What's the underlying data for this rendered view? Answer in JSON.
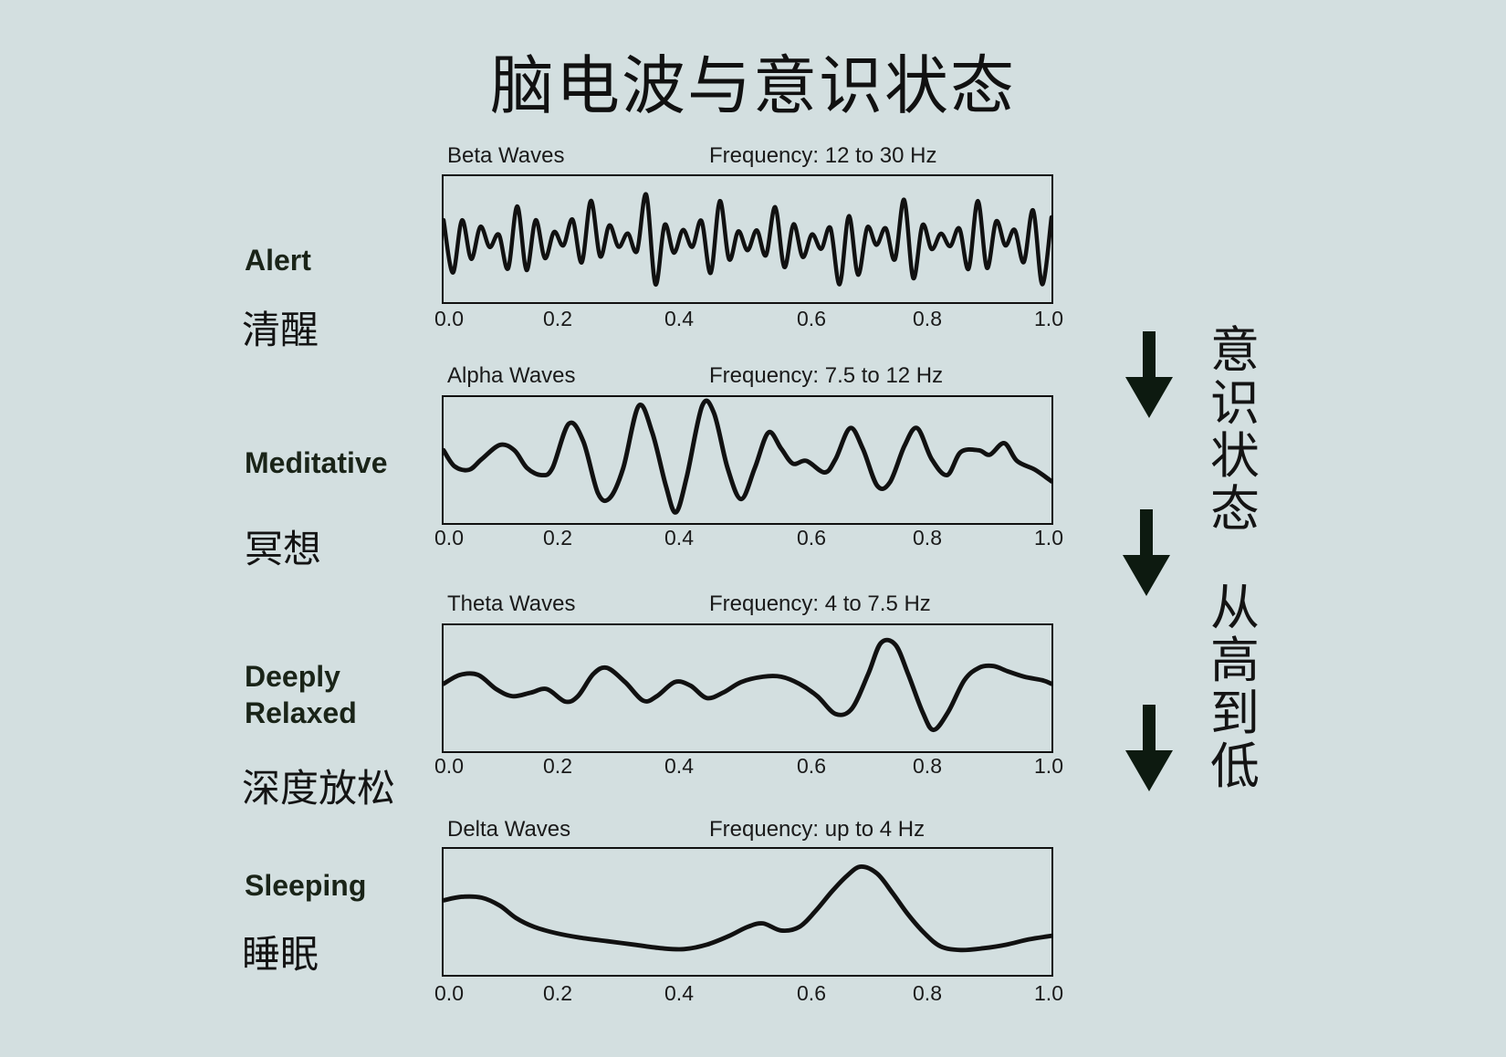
{
  "title": "脑电波与意识状态",
  "panels": [
    {
      "state_en": "Alert",
      "state_zh": "清醒",
      "wave_name": "Beta Waves",
      "frequency": "Frequency: 12 to 30 Hz",
      "ticks": [
        "0.0",
        "0.2",
        "0.4",
        "0.6",
        "0.8",
        "1.0"
      ]
    },
    {
      "state_en": "Meditative",
      "state_zh": "冥想",
      "wave_name": "Alpha Waves",
      "frequency": "Frequency: 7.5 to 12 Hz",
      "ticks": [
        "0.0",
        "0.2",
        "0.4",
        "0.6",
        "0.8",
        "1.0"
      ]
    },
    {
      "state_en": "Deeply Relaxed",
      "state_zh": "深度放松",
      "wave_name": "Theta Waves",
      "frequency": "Frequency: 4 to 7.5 Hz",
      "ticks": [
        "0.0",
        "0.2",
        "0.4",
        "0.6",
        "0.8",
        "1.0"
      ]
    },
    {
      "state_en": "Sleeping",
      "state_zh": "睡眠",
      "wave_name": "Delta Waves",
      "frequency": "Frequency: up to 4 Hz",
      "ticks": [
        "0.0",
        "0.2",
        "0.4",
        "0.6",
        "0.8",
        "1.0"
      ]
    }
  ],
  "side_label": {
    "part1": [
      "意",
      "识",
      "状",
      "态"
    ],
    "part2": [
      "从",
      "高",
      "到",
      "低"
    ]
  },
  "colors": {
    "background": "#d3dfe0",
    "ink": "#111111",
    "state_label": "#1a2418"
  }
}
